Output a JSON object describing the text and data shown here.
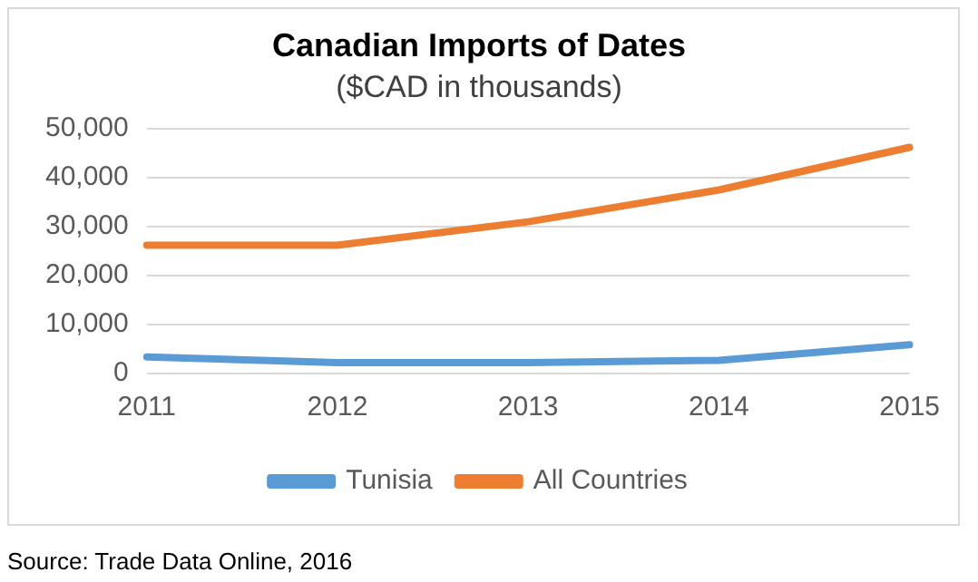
{
  "chart_data": {
    "type": "line",
    "title": "Canadian Imports of Dates",
    "subtitle": "($CAD in thousands)",
    "categories": [
      "2011",
      "2012",
      "2013",
      "2014",
      "2015"
    ],
    "series": [
      {
        "name": "Tunisia",
        "color": "#5b9bd5",
        "values": [
          3400,
          2200,
          2200,
          2700,
          5900
        ]
      },
      {
        "name": "All Countries",
        "color": "#ed7d31",
        "values": [
          26200,
          26200,
          31000,
          37500,
          46200
        ]
      }
    ],
    "ylim": [
      0,
      50000
    ],
    "yticks": [
      {
        "value": 0,
        "label": "0"
      },
      {
        "value": 10000,
        "label": "10,000"
      },
      {
        "value": 20000,
        "label": "20,000"
      },
      {
        "value": 30000,
        "label": "30,000"
      },
      {
        "value": 40000,
        "label": "40,000"
      },
      {
        "value": 50000,
        "label": "50,000"
      }
    ],
    "grid": "y",
    "legend": "bottom",
    "marker": "none",
    "line_style": "solid",
    "annotations": [
      "Source: Trade Data Online, 2016"
    ]
  }
}
